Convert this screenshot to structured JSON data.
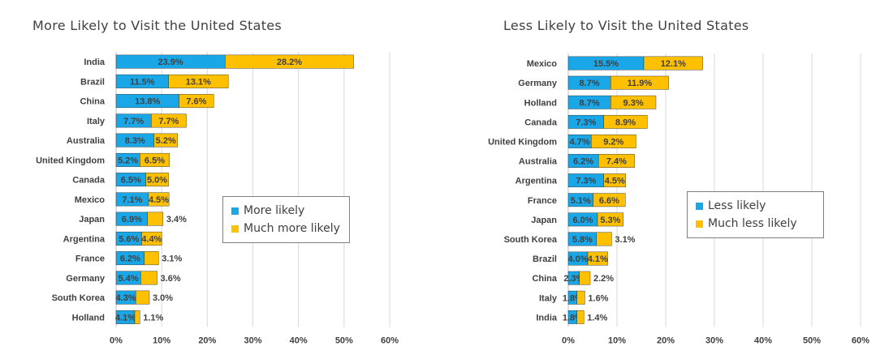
{
  "colors": {
    "series1": "#1aa7e8",
    "series2": "#ffc000",
    "grid": "#d9d9d9",
    "label": "#404040",
    "border": "#1f1f1f"
  },
  "chart_data": [
    {
      "type": "bar",
      "orientation": "horizontal",
      "stacked": true,
      "title": "More Likely to Visit the United States",
      "categories": [
        "India",
        "Brazil",
        "China",
        "Italy",
        "Australia",
        "United Kingdom",
        "Canada",
        "Mexico",
        "Japan",
        "Argentina",
        "France",
        "Germany",
        "South Korea",
        "Holland"
      ],
      "series": [
        {
          "name": "More likely",
          "values": [
            23.9,
            11.5,
            13.8,
            7.7,
            8.3,
            5.2,
            6.5,
            7.1,
            6.9,
            5.6,
            6.2,
            5.4,
            4.3,
            4.1
          ]
        },
        {
          "name": "Much more likely",
          "values": [
            28.2,
            13.1,
            7.6,
            7.7,
            5.2,
            6.5,
            5.0,
            4.5,
            3.4,
            4.4,
            3.1,
            3.6,
            3.0,
            1.1
          ]
        }
      ],
      "xlim": [
        0,
        60
      ],
      "xticks": [
        "0%",
        "10%",
        "20%",
        "30%",
        "40%",
        "50%",
        "60%"
      ],
      "grid": true,
      "legend_position": "right-middle"
    },
    {
      "type": "bar",
      "orientation": "horizontal",
      "stacked": true,
      "title": "Less Likely to Visit the United States",
      "categories": [
        "Mexico",
        "Germany",
        "Holland",
        "Canada",
        "United Kingdom",
        "Australia",
        "Argentina",
        "France",
        "Japan",
        "South Korea",
        "Brazil",
        "China",
        "Italy",
        "India"
      ],
      "series": [
        {
          "name": "Less likely",
          "values": [
            15.5,
            8.7,
            8.7,
            7.3,
            4.7,
            6.2,
            7.3,
            5.1,
            6.0,
            5.8,
            4.0,
            2.3,
            1.8,
            1.8
          ]
        },
        {
          "name": "Much less likely",
          "values": [
            12.1,
            11.9,
            9.3,
            8.9,
            9.2,
            7.4,
            4.5,
            6.6,
            5.3,
            3.1,
            4.1,
            2.2,
            1.6,
            1.4
          ]
        }
      ],
      "xlim": [
        0,
        60
      ],
      "xticks": [
        "0%",
        "10%",
        "20%",
        "30%",
        "40%",
        "50%",
        "60%"
      ],
      "grid": true,
      "legend_position": "right-middle"
    }
  ]
}
